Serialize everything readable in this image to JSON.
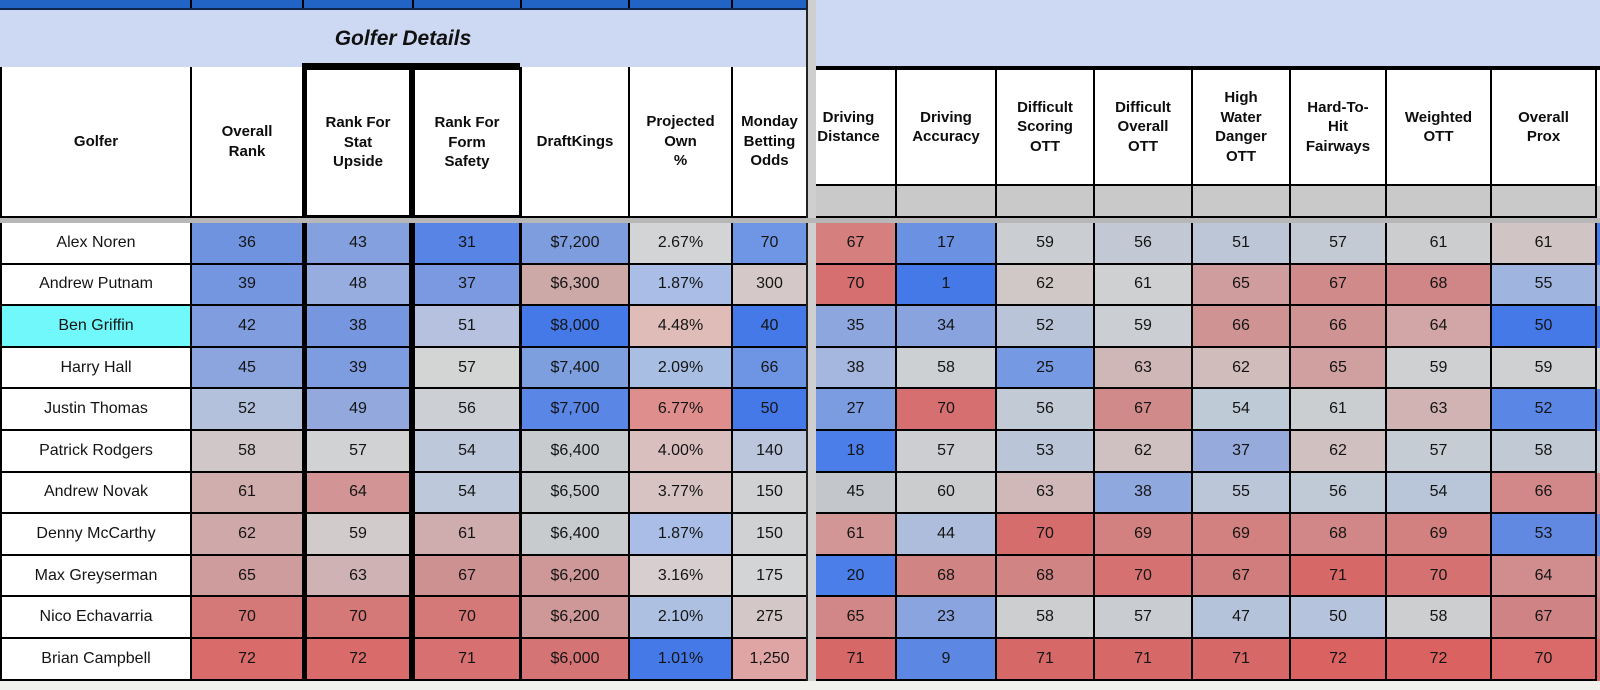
{
  "title": "Golfer Details",
  "colors": {
    "top_bar_blue": "#2263c6",
    "banner_lavender": "#cdd9f2",
    "highlight_cyan": "#70f8fa",
    "gray_band": "#c9c9c9",
    "pane_gap_gray": "#cfcfcf",
    "page_background": "#f1f1ee",
    "heat_blue_max": "#4579e8",
    "heat_red_max": "#da6362"
  },
  "left": {
    "columns": [
      "Golfer",
      "Overall\nRank",
      "Rank For\nStat\nUpside",
      "Rank For\nForm\nSafety",
      "DraftKings",
      "Projected\nOwn\n%",
      "Monday\nBetting\nOdds"
    ],
    "rows": [
      {
        "name": "Alex Noren",
        "name_bg": "#ffffff",
        "cells": [
          {
            "v": "36",
            "c": "#6f93df"
          },
          {
            "v": "43",
            "c": "#84a0de"
          },
          {
            "v": "31",
            "c": "#5784e5"
          },
          {
            "v": "$7,200",
            "c": "#7e9dde"
          },
          {
            "v": "2.67%",
            "c": "#d3d4d6"
          },
          {
            "v": "70",
            "c": "#6f95e5"
          }
        ]
      },
      {
        "name": "Andrew Putnam",
        "name_bg": "#ffffff",
        "cells": [
          {
            "v": "39",
            "c": "#7496e0"
          },
          {
            "v": "48",
            "c": "#97acdf"
          },
          {
            "v": "37",
            "c": "#7a99e0"
          },
          {
            "v": "$6,300",
            "c": "#cca8a6"
          },
          {
            "v": "1.87%",
            "c": "#a9bde6"
          },
          {
            "v": "300",
            "c": "#d5c8c8"
          }
        ]
      },
      {
        "name": "Ben Griffin",
        "name_bg": "#70f8fa",
        "cells": [
          {
            "v": "42",
            "c": "#7f9ddf"
          },
          {
            "v": "38",
            "c": "#7697e0"
          },
          {
            "v": "51",
            "c": "#b5c1df"
          },
          {
            "v": "$8,000",
            "c": "#4579e8"
          },
          {
            "v": "4.48%",
            "c": "#e0bcb8"
          },
          {
            "v": "40",
            "c": "#4579e8"
          }
        ]
      },
      {
        "name": "Harry Hall",
        "name_bg": "#ffffff",
        "cells": [
          {
            "v": "45",
            "c": "#8ca5de"
          },
          {
            "v": "39",
            "c": "#7e9ce0"
          },
          {
            "v": "57",
            "c": "#d3d4d4"
          },
          {
            "v": "$7,400",
            "c": "#7d9fde"
          },
          {
            "v": "2.09%",
            "c": "#a8bee3"
          },
          {
            "v": "66",
            "c": "#6d95e3"
          }
        ]
      },
      {
        "name": "Justin Thomas",
        "name_bg": "#ffffff",
        "cells": [
          {
            "v": "52",
            "c": "#b4c1dc"
          },
          {
            "v": "49",
            "c": "#93a9de"
          },
          {
            "v": "56",
            "c": "#ccd0d4"
          },
          {
            "v": "$7,700",
            "c": "#5a86e5"
          },
          {
            "v": "6.77%",
            "c": "#de8f8d"
          },
          {
            "v": "50",
            "c": "#4579e8"
          }
        ]
      },
      {
        "name": "Patrick Rodgers",
        "name_bg": "#ffffff",
        "cells": [
          {
            "v": "58",
            "c": "#d0c7c8"
          },
          {
            "v": "57",
            "c": "#d1d2d3"
          },
          {
            "v": "54",
            "c": "#bec8db"
          },
          {
            "v": "$6,400",
            "c": "#c8cbce"
          },
          {
            "v": "4.00%",
            "c": "#d9c0bf"
          },
          {
            "v": "140",
            "c": "#bbc5dc"
          }
        ]
      },
      {
        "name": "Andrew Novak",
        "name_bg": "#ffffff",
        "cells": [
          {
            "v": "61",
            "c": "#d0aeae"
          },
          {
            "v": "64",
            "c": "#d29495"
          },
          {
            "v": "54",
            "c": "#bec8db"
          },
          {
            "v": "$6,500",
            "c": "#c8cbce"
          },
          {
            "v": "3.77%",
            "c": "#d6c3c2"
          },
          {
            "v": "150",
            "c": "#d0d1d3"
          }
        ]
      },
      {
        "name": "Denny McCarthy",
        "name_bg": "#ffffff",
        "cells": [
          {
            "v": "62",
            "c": "#cfa9aa"
          },
          {
            "v": "59",
            "c": "#d2cbcc"
          },
          {
            "v": "61",
            "c": "#cfacad"
          },
          {
            "v": "$6,400",
            "c": "#c8cbce"
          },
          {
            "v": "1.87%",
            "c": "#a9bde6"
          },
          {
            "v": "150",
            "c": "#d0d1d3"
          }
        ]
      },
      {
        "name": "Max Greyserman",
        "name_bg": "#ffffff",
        "cells": [
          {
            "v": "65",
            "c": "#ce9c9d"
          },
          {
            "v": "63",
            "c": "#cfb3b4"
          },
          {
            "v": "67",
            "c": "#ce9192"
          },
          {
            "v": "$6,200",
            "c": "#cd9897"
          },
          {
            "v": "3.16%",
            "c": "#d7cecf"
          },
          {
            "v": "175",
            "c": "#d3d4d6"
          }
        ]
      },
      {
        "name": "Nico Echavarria",
        "name_bg": "#ffffff",
        "cells": [
          {
            "v": "70",
            "c": "#d47878"
          },
          {
            "v": "70",
            "c": "#d47878"
          },
          {
            "v": "70",
            "c": "#d47878"
          },
          {
            "v": "$6,200",
            "c": "#cd9897"
          },
          {
            "v": "2.10%",
            "c": "#aec0e2"
          },
          {
            "v": "275",
            "c": "#d3c7c8"
          }
        ]
      },
      {
        "name": "Brian Campbell",
        "name_bg": "#ffffff",
        "cells": [
          {
            "v": "72",
            "c": "#d96b6b"
          },
          {
            "v": "72",
            "c": "#d96b6b"
          },
          {
            "v": "71",
            "c": "#d77070"
          },
          {
            "v": "$6,000",
            "c": "#d47474"
          },
          {
            "v": "1.01%",
            "c": "#4579e8"
          },
          {
            "v": "1,250",
            "c": "#dfa5a5"
          }
        ]
      }
    ]
  },
  "right": {
    "columns": [
      "Driving\nDistance",
      "Driving\nAccuracy",
      "Difficult\nScoring\nOTT",
      "Difficult\nOverall\nOTT",
      "High\nWater\nDanger\nOTT",
      "Hard-To-\nHit\nFairways",
      "Weighted\nOTT",
      "Overall\nProx"
    ],
    "rows": [
      {
        "cells": [
          {
            "v": "67",
            "c": "#d67f7f"
          },
          {
            "v": "17",
            "c": "#6b92e2"
          },
          {
            "v": "59",
            "c": "#cacdd1"
          },
          {
            "v": "56",
            "c": "#c2c9d4"
          },
          {
            "v": "51",
            "c": "#bdc6d6"
          },
          {
            "v": "57",
            "c": "#c4cad3"
          },
          {
            "v": "61",
            "c": "#cbcdcf"
          },
          {
            "v": "61",
            "c": "#d0c4c4"
          }
        ]
      },
      {
        "cells": [
          {
            "v": "70",
            "c": "#d66f6f"
          },
          {
            "v": "1",
            "c": "#4579e8"
          },
          {
            "v": "62",
            "c": "#d0c7c7"
          },
          {
            "v": "61",
            "c": "#ced0d2"
          },
          {
            "v": "65",
            "c": "#d09d9e"
          },
          {
            "v": "67",
            "c": "#d18a8a"
          },
          {
            "v": "68",
            "c": "#d08586"
          },
          {
            "v": "55",
            "c": "#9fb4df"
          }
        ]
      },
      {
        "cells": [
          {
            "v": "35",
            "c": "#8da7de"
          },
          {
            "v": "34",
            "c": "#89a3df"
          },
          {
            "v": "52",
            "c": "#b9c4d8"
          },
          {
            "v": "59",
            "c": "#cbcfd3"
          },
          {
            "v": "66",
            "c": "#d09394"
          },
          {
            "v": "66",
            "c": "#d09394"
          },
          {
            "v": "64",
            "c": "#d2a6a6"
          },
          {
            "v": "50",
            "c": "#4579e8"
          }
        ]
      },
      {
        "cells": [
          {
            "v": "38",
            "c": "#a5b7de"
          },
          {
            "v": "58",
            "c": "#cdd0d3"
          },
          {
            "v": "25",
            "c": "#7599e3"
          },
          {
            "v": "63",
            "c": "#d0b7b7"
          },
          {
            "v": "62",
            "c": "#d1bcbc"
          },
          {
            "v": "65",
            "c": "#d09fa0"
          },
          {
            "v": "59",
            "c": "#ced0d2"
          },
          {
            "v": "59",
            "c": "#ced0d2"
          }
        ]
      },
      {
        "cells": [
          {
            "v": "27",
            "c": "#7c9ce2"
          },
          {
            "v": "70",
            "c": "#d66f6f"
          },
          {
            "v": "56",
            "c": "#c2cad5"
          },
          {
            "v": "67",
            "c": "#d18a8a"
          },
          {
            "v": "54",
            "c": "#bfcad7"
          },
          {
            "v": "61",
            "c": "#cbced1"
          },
          {
            "v": "63",
            "c": "#d2b3b3"
          },
          {
            "v": "52",
            "c": "#5a86e5"
          }
        ]
      },
      {
        "cells": [
          {
            "v": "18",
            "c": "#4b7ee8"
          },
          {
            "v": "57",
            "c": "#ccced1"
          },
          {
            "v": "53",
            "c": "#bac5d8"
          },
          {
            "v": "62",
            "c": "#cfc1c1"
          },
          {
            "v": "37",
            "c": "#96abdb"
          },
          {
            "v": "62",
            "c": "#d1c0c0"
          },
          {
            "v": "57",
            "c": "#c6ccd3"
          },
          {
            "v": "58",
            "c": "#c1c9d5"
          }
        ]
      },
      {
        "cells": [
          {
            "v": "45",
            "c": "#c3c7cb"
          },
          {
            "v": "60",
            "c": "#cbccce"
          },
          {
            "v": "63",
            "c": "#d1b8b8"
          },
          {
            "v": "38",
            "c": "#8fa8dd"
          },
          {
            "v": "55",
            "c": "#bbc6d8"
          },
          {
            "v": "56",
            "c": "#c0c9d6"
          },
          {
            "v": "54",
            "c": "#b9c5d9"
          },
          {
            "v": "66",
            "c": "#d28788"
          }
        ]
      },
      {
        "cells": [
          {
            "v": "61",
            "c": "#d29697"
          },
          {
            "v": "44",
            "c": "#aebddb"
          },
          {
            "v": "70",
            "c": "#d56d6d"
          },
          {
            "v": "69",
            "c": "#d28080"
          },
          {
            "v": "69",
            "c": "#d28080"
          },
          {
            "v": "68",
            "c": "#d18687"
          },
          {
            "v": "69",
            "c": "#d28080"
          },
          {
            "v": "53",
            "c": "#6189e2"
          }
        ]
      },
      {
        "cells": [
          {
            "v": "20",
            "c": "#4b7ee8"
          },
          {
            "v": "68",
            "c": "#d18484"
          },
          {
            "v": "68",
            "c": "#d18484"
          },
          {
            "v": "70",
            "c": "#d57171"
          },
          {
            "v": "67",
            "c": "#d17d7d"
          },
          {
            "v": "71",
            "c": "#d66868"
          },
          {
            "v": "70",
            "c": "#d57171"
          },
          {
            "v": "64",
            "c": "#d18d8e"
          }
        ]
      },
      {
        "cells": [
          {
            "v": "65",
            "c": "#d18788"
          },
          {
            "v": "23",
            "c": "#8aa4df"
          },
          {
            "v": "58",
            "c": "#ccced0"
          },
          {
            "v": "57",
            "c": "#c9cdd1"
          },
          {
            "v": "47",
            "c": "#b4c2da"
          },
          {
            "v": "50",
            "c": "#b6c3dc"
          },
          {
            "v": "58",
            "c": "#ccced0"
          },
          {
            "v": "67",
            "c": "#d08384"
          }
        ]
      },
      {
        "cells": [
          {
            "v": "71",
            "c": "#d66868"
          },
          {
            "v": "9",
            "c": "#5c88e4"
          },
          {
            "v": "71",
            "c": "#d66868"
          },
          {
            "v": "71",
            "c": "#d66868"
          },
          {
            "v": "71",
            "c": "#d66868"
          },
          {
            "v": "72",
            "c": "#da6362"
          },
          {
            "v": "72",
            "c": "#da6362"
          },
          {
            "v": "70",
            "c": "#da6a6a"
          }
        ]
      }
    ]
  },
  "edge": {
    "slivers": [
      "#4a7de8",
      "#9fb4df",
      "#4579e8",
      "#ced0d2",
      "#5a86e5",
      "#c1c9d5",
      "#d28788",
      "#6189e2",
      "#d18d8e",
      "#d08384",
      "#da6a6a"
    ]
  }
}
